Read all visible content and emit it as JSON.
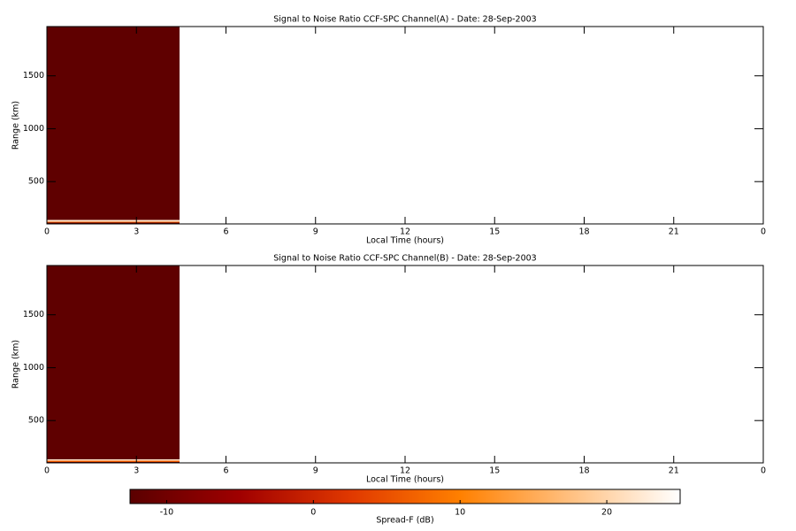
{
  "chart_data": [
    {
      "type": "heatmap",
      "title": "Signal to Noise Ratio CCF-SPC Channel(A) - Date: 28-Sep-2003",
      "xlabel": "Local Time (hours)",
      "ylabel": "Range (km)",
      "xlim": [
        0,
        24
      ],
      "xticks": [
        0,
        3,
        6,
        9,
        12,
        15,
        18,
        21,
        {
          "value": 24,
          "label": "0"
        }
      ],
      "ylim": [
        100,
        1966
      ],
      "yticks": [
        500,
        1000,
        1500
      ],
      "x_edges": [
        0,
        4.44
      ],
      "y_edges": [
        100,
        115,
        125,
        140,
        1966
      ],
      "values": [
        [
          -12
        ],
        [
          6
        ],
        [
          22
        ],
        [
          -12
        ]
      ]
    },
    {
      "type": "heatmap",
      "title": "Signal to Noise Ratio CCF-SPC Channel(B) - Date: 28-Sep-2003",
      "xlabel": "Local Time (hours)",
      "ylabel": "Range (km)",
      "xlim": [
        0,
        24
      ],
      "xticks": [
        0,
        3,
        6,
        9,
        12,
        15,
        18,
        21,
        {
          "value": 24,
          "label": "0"
        }
      ],
      "ylim": [
        100,
        1966
      ],
      "yticks": [
        500,
        1000,
        1500
      ],
      "x_edges": [
        0,
        4.44
      ],
      "y_edges": [
        100,
        112,
        122,
        135,
        1966
      ],
      "values": [
        [
          -12
        ],
        [
          6
        ],
        [
          22
        ],
        [
          -12
        ]
      ]
    },
    {
      "type": "colorbar",
      "label": "Spread-F (dB)",
      "clim": [
        -12.5,
        25
      ],
      "cticks": [
        -10,
        0,
        10,
        20
      ],
      "colors": [
        "#5a0000",
        "#a00000",
        "#e03800",
        "#ff8000",
        "#ffc080",
        "#ffffff"
      ]
    }
  ]
}
